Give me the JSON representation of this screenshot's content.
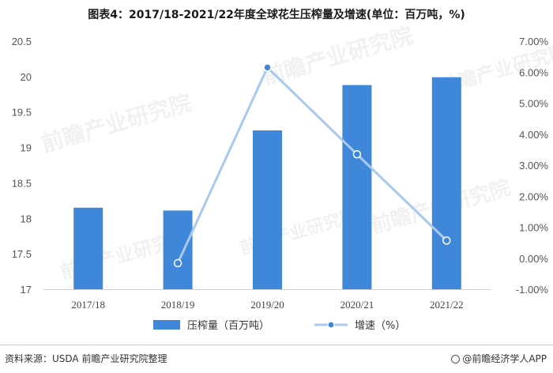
{
  "chart_data": {
    "type": "bar",
    "title": "图表4：2017/18-2021/22年度全球花生压榨量及增速(单位：百万吨，%)",
    "categories": [
      "2017/18",
      "2018/19",
      "2019/20",
      "2020/21",
      "2021/22"
    ],
    "series": [
      {
        "name": "压榨量（百万吨）",
        "type": "bar",
        "axis": "left",
        "color": "#3f87d8",
        "values": [
          18.15,
          18.11,
          19.24,
          19.88,
          19.99
        ]
      },
      {
        "name": "增速（%）",
        "type": "line",
        "axis": "right",
        "color": "#a9c9ee",
        "values": [
          null,
          -0.16,
          6.15,
          3.35,
          0.57
        ]
      }
    ],
    "ylim": [
      17,
      20.5
    ],
    "yticks": [
      17,
      17.5,
      18,
      18.5,
      19,
      19.5,
      20,
      20.5
    ],
    "y2lim": [
      -1,
      7
    ],
    "y2ticks": [
      -1,
      0,
      1,
      2,
      3,
      4,
      5,
      6,
      7
    ],
    "legend_position": "bottom",
    "grid": false
  },
  "watermark": "前瞻产业研究院",
  "footer": {
    "source": "资料来源：USDA 前瞻产业研究院整理",
    "brand": "@前瞻经济学人APP"
  }
}
